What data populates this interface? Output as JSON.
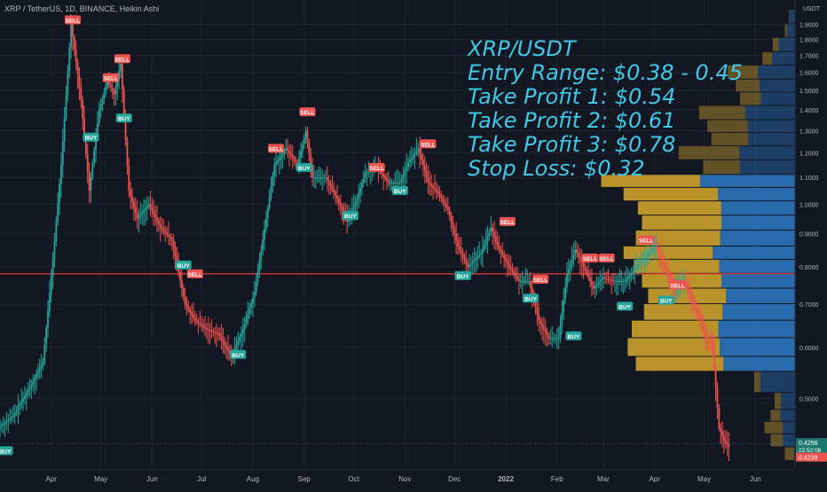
{
  "header": {
    "symbol": "XRP / TetherUS, 1D, BINANCE, Heikin Ashi"
  },
  "currency_label": "USDT",
  "overlay": {
    "lines": [
      "XRP/USDT",
      "Entry Range: $0.38 - 0.45",
      "Take Profit 1: $0.54",
      "Take Profit 2: $0.61",
      "Take Profit 3: $0.78",
      "Stop Loss: $0.32"
    ]
  },
  "colors": {
    "background": "#131722",
    "grid": "#1f2330",
    "up_candle": "#26a69a",
    "down_candle": "#ef5350",
    "horizontal_line": "#e53935",
    "vp_up_area": "#2a6fb5",
    "vp_down_area": "#c49a2c",
    "sell_label": "#ef5350",
    "buy_label": "#26a69a",
    "overlay_text": "#3fc8e8"
  },
  "chart_data": {
    "type": "candlestick",
    "title": "XRP / TetherUS, 1D, BINANCE, Heikin Ashi",
    "y_scale": "log",
    "ylim": [
      0.4,
      2.02
    ],
    "yticks": [
      0.5,
      0.6,
      0.7,
      0.8,
      0.9,
      1.0,
      1.1,
      1.2,
      1.3,
      1.4,
      1.5,
      1.6,
      1.7,
      1.8,
      1.9
    ],
    "ytick_labels": [
      "0.5000",
      "0.6000",
      "0.7000",
      "0.8000",
      "0.9000",
      "1.0000",
      "1.1000",
      "1.2000",
      "1.3000",
      "1.4000",
      "1.5000",
      "1.6000",
      "1.7000",
      "1.8000",
      "1.9000"
    ],
    "xlim": [
      "2021-03-01",
      "2022-06-25"
    ],
    "xticks": [
      {
        "date": "2021-04-01",
        "label": "Apr"
      },
      {
        "date": "2021-05-01",
        "label": "May"
      },
      {
        "date": "2021-06-01",
        "label": "Jun"
      },
      {
        "date": "2021-07-01",
        "label": "Jul"
      },
      {
        "date": "2021-08-01",
        "label": "Aug"
      },
      {
        "date": "2021-09-01",
        "label": "Sep"
      },
      {
        "date": "2021-10-01",
        "label": "Oct"
      },
      {
        "date": "2021-11-01",
        "label": "Nov"
      },
      {
        "date": "2021-12-01",
        "label": "Dec"
      },
      {
        "date": "2022-01-01",
        "label": "2022"
      },
      {
        "date": "2022-02-01",
        "label": "Feb"
      },
      {
        "date": "2022-03-01",
        "label": "Mar"
      },
      {
        "date": "2022-04-01",
        "label": "Apr"
      },
      {
        "date": "2022-05-01",
        "label": "May"
      },
      {
        "date": "2022-06-01",
        "label": "Jun"
      }
    ],
    "price_path": [
      [
        "2021-03-01",
        0.45
      ],
      [
        "2021-03-10",
        0.47
      ],
      [
        "2021-03-20",
        0.52
      ],
      [
        "2021-03-28",
        0.57
      ],
      [
        "2021-04-03",
        0.82
      ],
      [
        "2021-04-08",
        1.15
      ],
      [
        "2021-04-14",
        1.9
      ],
      [
        "2021-04-20",
        1.45
      ],
      [
        "2021-04-25",
        1.05
      ],
      [
        "2021-05-01",
        1.4
      ],
      [
        "2021-05-06",
        1.55
      ],
      [
        "2021-05-10",
        1.48
      ],
      [
        "2021-05-14",
        1.65
      ],
      [
        "2021-05-19",
        1.05
      ],
      [
        "2021-05-24",
        0.95
      ],
      [
        "2021-05-31",
        1.0
      ],
      [
        "2021-06-07",
        0.92
      ],
      [
        "2021-06-14",
        0.88
      ],
      [
        "2021-06-22",
        0.7
      ],
      [
        "2021-06-28",
        0.66
      ],
      [
        "2021-07-05",
        0.64
      ],
      [
        "2021-07-12",
        0.63
      ],
      [
        "2021-07-20",
        0.58
      ],
      [
        "2021-07-27",
        0.64
      ],
      [
        "2021-08-03",
        0.73
      ],
      [
        "2021-08-10",
        0.95
      ],
      [
        "2021-08-15",
        1.15
      ],
      [
        "2021-08-22",
        1.22
      ],
      [
        "2021-08-29",
        1.15
      ],
      [
        "2021-09-03",
        1.3
      ],
      [
        "2021-09-07",
        1.1
      ],
      [
        "2021-09-15",
        1.1
      ],
      [
        "2021-09-22",
        1.02
      ],
      [
        "2021-09-28",
        0.94
      ],
      [
        "2021-10-04",
        1.02
      ],
      [
        "2021-10-09",
        1.12
      ],
      [
        "2021-10-16",
        1.14
      ],
      [
        "2021-10-23",
        1.08
      ],
      [
        "2021-10-30",
        1.08
      ],
      [
        "2021-11-04",
        1.16
      ],
      [
        "2021-11-10",
        1.22
      ],
      [
        "2021-11-16",
        1.08
      ],
      [
        "2021-11-22",
        1.04
      ],
      [
        "2021-11-28",
        0.98
      ],
      [
        "2021-12-04",
        0.86
      ],
      [
        "2021-12-10",
        0.8
      ],
      [
        "2021-12-18",
        0.84
      ],
      [
        "2021-12-24",
        0.92
      ],
      [
        "2021-12-28",
        0.86
      ],
      [
        "2022-01-04",
        0.8
      ],
      [
        "2022-01-10",
        0.76
      ],
      [
        "2022-01-16",
        0.76
      ],
      [
        "2022-01-22",
        0.66
      ],
      [
        "2022-01-28",
        0.62
      ],
      [
        "2022-02-03",
        0.62
      ],
      [
        "2022-02-08",
        0.78
      ],
      [
        "2022-02-13",
        0.85
      ],
      [
        "2022-02-18",
        0.8
      ],
      [
        "2022-02-24",
        0.74
      ],
      [
        "2022-03-02",
        0.77
      ],
      [
        "2022-03-08",
        0.76
      ],
      [
        "2022-03-15",
        0.76
      ],
      [
        "2022-03-22",
        0.8
      ],
      [
        "2022-03-29",
        0.84
      ],
      [
        "2022-04-03",
        0.86
      ],
      [
        "2022-04-08",
        0.8
      ],
      [
        "2022-04-14",
        0.74
      ],
      [
        "2022-04-20",
        0.76
      ],
      [
        "2022-04-26",
        0.7
      ],
      [
        "2022-05-02",
        0.63
      ],
      [
        "2022-05-07",
        0.6
      ],
      [
        "2022-05-11",
        0.45
      ],
      [
        "2022-05-14",
        0.43
      ],
      [
        "2022-05-17",
        0.42
      ]
    ],
    "horizontal_line": {
      "price": 0.78,
      "color": "#e53935"
    },
    "volume_profile": [
      {
        "low": 0.4,
        "high": 0.42,
        "total": 0.05,
        "up_share": 0.1
      },
      {
        "low": 0.42,
        "high": 0.44,
        "total": 0.12,
        "up_share": 0.5
      },
      {
        "low": 0.44,
        "high": 0.46,
        "total": 0.15,
        "up_share": 0.4
      },
      {
        "low": 0.46,
        "high": 0.48,
        "total": 0.12,
        "up_share": 0.6
      },
      {
        "low": 0.48,
        "high": 0.51,
        "total": 0.1,
        "up_share": 0.7
      },
      {
        "low": 0.51,
        "high": 0.55,
        "total": 0.2,
        "up_share": 0.85
      },
      {
        "low": 0.55,
        "high": 0.58,
        "total": 0.78,
        "up_share": 0.45
      },
      {
        "low": 0.58,
        "high": 0.62,
        "total": 0.82,
        "up_share": 0.45
      },
      {
        "low": 0.62,
        "high": 0.66,
        "total": 0.8,
        "up_share": 0.47
      },
      {
        "low": 0.66,
        "high": 0.7,
        "total": 0.74,
        "up_share": 0.48
      },
      {
        "low": 0.7,
        "high": 0.74,
        "total": 0.72,
        "up_share": 0.47
      },
      {
        "low": 0.74,
        "high": 0.78,
        "total": 0.75,
        "up_share": 0.48
      },
      {
        "low": 0.78,
        "high": 0.82,
        "total": 0.79,
        "up_share": 0.47
      },
      {
        "low": 0.82,
        "high": 0.86,
        "total": 0.84,
        "up_share": 0.48
      },
      {
        "low": 0.86,
        "high": 0.91,
        "total": 0.78,
        "up_share": 0.47
      },
      {
        "low": 0.91,
        "high": 0.96,
        "total": 0.75,
        "up_share": 0.48
      },
      {
        "low": 0.96,
        "high": 1.01,
        "total": 0.77,
        "up_share": 0.47
      },
      {
        "low": 1.01,
        "high": 1.06,
        "total": 0.84,
        "up_share": 0.45
      },
      {
        "low": 1.06,
        "high": 1.11,
        "total": 0.95,
        "up_share": 0.49
      },
      {
        "low": 1.11,
        "high": 1.17,
        "total": 0.45,
        "up_share": 0.6
      },
      {
        "low": 1.17,
        "high": 1.23,
        "total": 0.57,
        "up_share": 0.48
      },
      {
        "low": 1.23,
        "high": 1.29,
        "total": 0.41,
        "up_share": 0.56
      },
      {
        "low": 1.29,
        "high": 1.35,
        "total": 0.43,
        "up_share": 0.54
      },
      {
        "low": 1.35,
        "high": 1.42,
        "total": 0.47,
        "up_share": 0.52
      },
      {
        "low": 1.42,
        "high": 1.49,
        "total": 0.27,
        "up_share": 0.62
      },
      {
        "low": 1.49,
        "high": 1.56,
        "total": 0.29,
        "up_share": 0.6
      },
      {
        "low": 1.56,
        "high": 1.64,
        "total": 0.33,
        "up_share": 0.55
      },
      {
        "low": 1.64,
        "high": 1.72,
        "total": 0.16,
        "up_share": 0.7
      },
      {
        "low": 1.72,
        "high": 1.81,
        "total": 0.11,
        "up_share": 0.72
      },
      {
        "low": 1.81,
        "high": 1.9,
        "total": 0.05,
        "up_share": 0.8
      },
      {
        "low": 1.9,
        "high": 2.0,
        "total": 0.03,
        "up_share": 0.9
      }
    ],
    "signals": [
      {
        "type": "SELL",
        "date": "2021-04-14",
        "price": 1.93
      },
      {
        "type": "SELL",
        "date": "2021-05-14",
        "price": 1.68
      },
      {
        "type": "SELL",
        "date": "2021-05-07",
        "price": 1.57
      },
      {
        "type": "BUY",
        "date": "2021-05-15",
        "price": 1.36
      },
      {
        "type": "BUY",
        "date": "2021-04-25",
        "price": 1.27
      },
      {
        "type": "BUY",
        "date": "2021-06-20",
        "price": 0.805
      },
      {
        "type": "SELL",
        "date": "2021-06-27",
        "price": 0.78
      },
      {
        "type": "BUY",
        "date": "2021-07-23",
        "price": 0.585
      },
      {
        "type": "BUY",
        "date": "2021-03-04",
        "price": 0.415
      },
      {
        "type": "SELL",
        "date": "2021-09-03",
        "price": 1.39
      },
      {
        "type": "SELL",
        "date": "2021-08-15",
        "price": 1.22
      },
      {
        "type": "BUY",
        "date": "2021-09-01",
        "price": 1.14
      },
      {
        "type": "BUY",
        "date": "2021-09-29",
        "price": 0.96
      },
      {
        "type": "SELL",
        "date": "2021-10-15",
        "price": 1.14
      },
      {
        "type": "BUY",
        "date": "2021-10-29",
        "price": 1.05
      },
      {
        "type": "SELL",
        "date": "2021-11-15",
        "price": 1.24
      },
      {
        "type": "SELL",
        "date": "2022-01-02",
        "price": 0.94
      },
      {
        "type": "BUY",
        "date": "2021-12-06",
        "price": 0.775
      },
      {
        "type": "SELL",
        "date": "2022-01-22",
        "price": 0.765
      },
      {
        "type": "BUY",
        "date": "2022-01-16",
        "price": 0.715
      },
      {
        "type": "BUY",
        "date": "2022-02-11",
        "price": 0.625
      },
      {
        "type": "SELL",
        "date": "2022-02-21",
        "price": 0.825
      },
      {
        "type": "SELL",
        "date": "2022-03-03",
        "price": 0.825
      },
      {
        "type": "BUY",
        "date": "2022-03-14",
        "price": 0.695
      },
      {
        "type": "SELL",
        "date": "2022-03-27",
        "price": 0.88
      },
      {
        "type": "BUY",
        "date": "2022-04-08",
        "price": 0.71
      },
      {
        "type": "SELL",
        "date": "2022-04-15",
        "price": 0.75
      }
    ],
    "price_labels": {
      "current_price": "0.4258",
      "countdown": "22:52:08",
      "lower_price": "0.4239"
    }
  }
}
